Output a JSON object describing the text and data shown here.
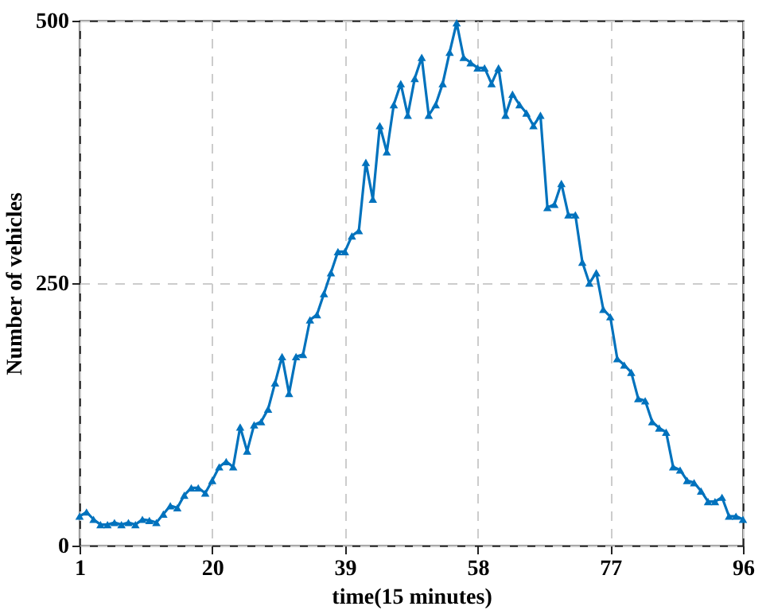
{
  "chart_data": {
    "type": "line",
    "xlabel": "time(15 minutes)",
    "ylabel": "Number of vehicles",
    "x": [
      1,
      2,
      3,
      4,
      5,
      6,
      7,
      8,
      9,
      10,
      11,
      12,
      13,
      14,
      15,
      16,
      17,
      18,
      19,
      20,
      21,
      22,
      23,
      24,
      25,
      26,
      27,
      28,
      29,
      30,
      31,
      32,
      33,
      34,
      35,
      36,
      37,
      38,
      39,
      40,
      41,
      42,
      43,
      44,
      45,
      46,
      47,
      48,
      49,
      50,
      51,
      52,
      53,
      54,
      55,
      56,
      57,
      58,
      59,
      60,
      61,
      62,
      63,
      64,
      65,
      66,
      67,
      68,
      69,
      70,
      71,
      72,
      73,
      74,
      75,
      76,
      77,
      78,
      79,
      80,
      81,
      82,
      83,
      84,
      85,
      86,
      87,
      88,
      89,
      90,
      91,
      92,
      93,
      94,
      95,
      96
    ],
    "series": [
      {
        "color": "#0072bd",
        "values": [
          28,
          32,
          25,
          20,
          20,
          22,
          20,
          22,
          20,
          25,
          24,
          22,
          30,
          38,
          36,
          48,
          55,
          55,
          50,
          62,
          75,
          80,
          75,
          113,
          90,
          115,
          118,
          130,
          155,
          180,
          145,
          180,
          182,
          215,
          220,
          240,
          260,
          280,
          280,
          295,
          300,
          365,
          330,
          400,
          375,
          420,
          440,
          410,
          445,
          465,
          410,
          420,
          440,
          470,
          498,
          465,
          460,
          455,
          455,
          440,
          455,
          410,
          430,
          420,
          412,
          400,
          410,
          322,
          325,
          345,
          315,
          315,
          270,
          250,
          260,
          225,
          218,
          178,
          172,
          165,
          140,
          138,
          118,
          112,
          108,
          75,
          72,
          62,
          60,
          52,
          42,
          42,
          46,
          28,
          28,
          25
        ]
      }
    ],
    "xlim": [
      1,
      96
    ],
    "xticks": [
      1,
      20,
      39,
      58,
      77,
      96
    ],
    "ylim": [
      0,
      500
    ],
    "yticks": [
      0,
      250,
      500
    ],
    "grid": true,
    "marker": "triangle",
    "line_style": "solid"
  }
}
